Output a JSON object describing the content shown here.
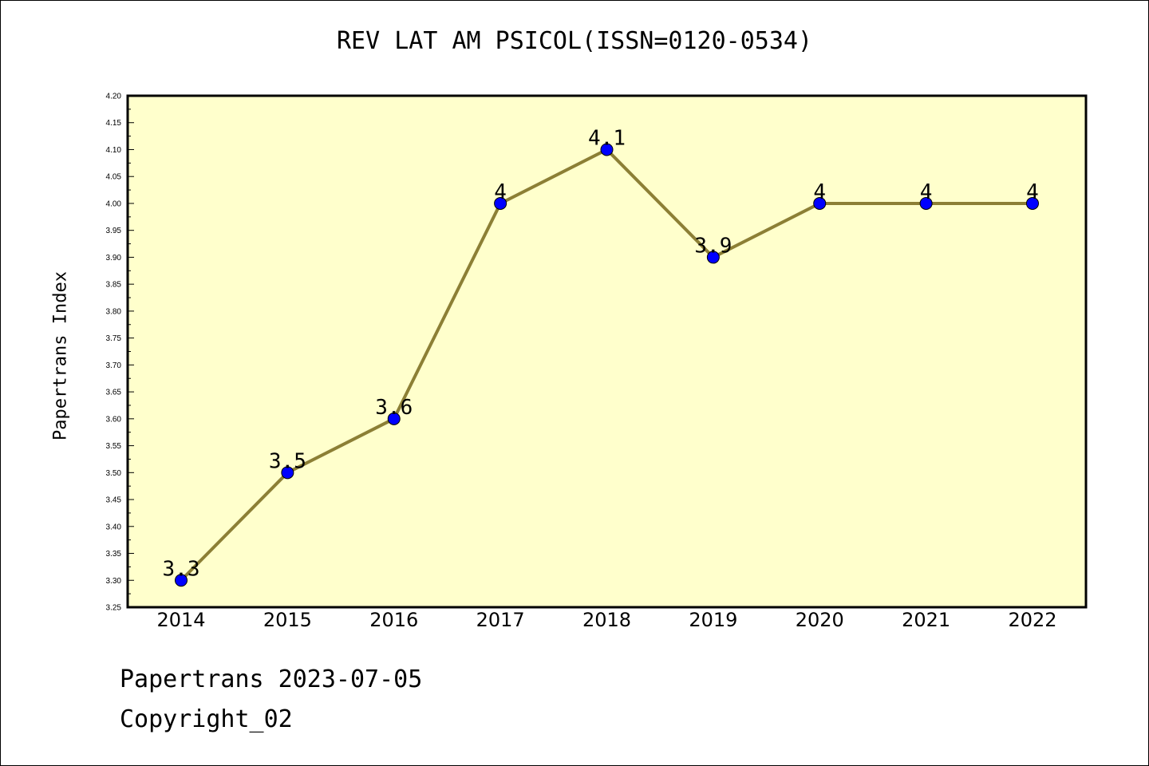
{
  "chart_data": {
    "type": "line",
    "title": "REV LAT AM PSICOL(ISSN=0120-0534)",
    "xlabel": "",
    "ylabel": "Papertrans Index",
    "categories": [
      "2014",
      "2015",
      "2016",
      "2017",
      "2018",
      "2019",
      "2020",
      "2021",
      "2022"
    ],
    "values": [
      3.3,
      3.5,
      3.6,
      4.0,
      4.1,
      3.9,
      4.0,
      4.0,
      4.0
    ],
    "data_labels": [
      "3.3",
      "3.5",
      "3.6",
      "4",
      "4.1",
      "3.9",
      "4",
      "4",
      "4"
    ],
    "ylim": [
      3.25,
      4.2
    ],
    "ytick_step": 0.05,
    "grid": false,
    "colors": {
      "plot_background": "#ffffcc",
      "line": "#8c7f35",
      "marker": "#0000ff"
    }
  },
  "footer": {
    "line1": "Papertrans 2023-07-05",
    "line2": "Copyright_02"
  }
}
